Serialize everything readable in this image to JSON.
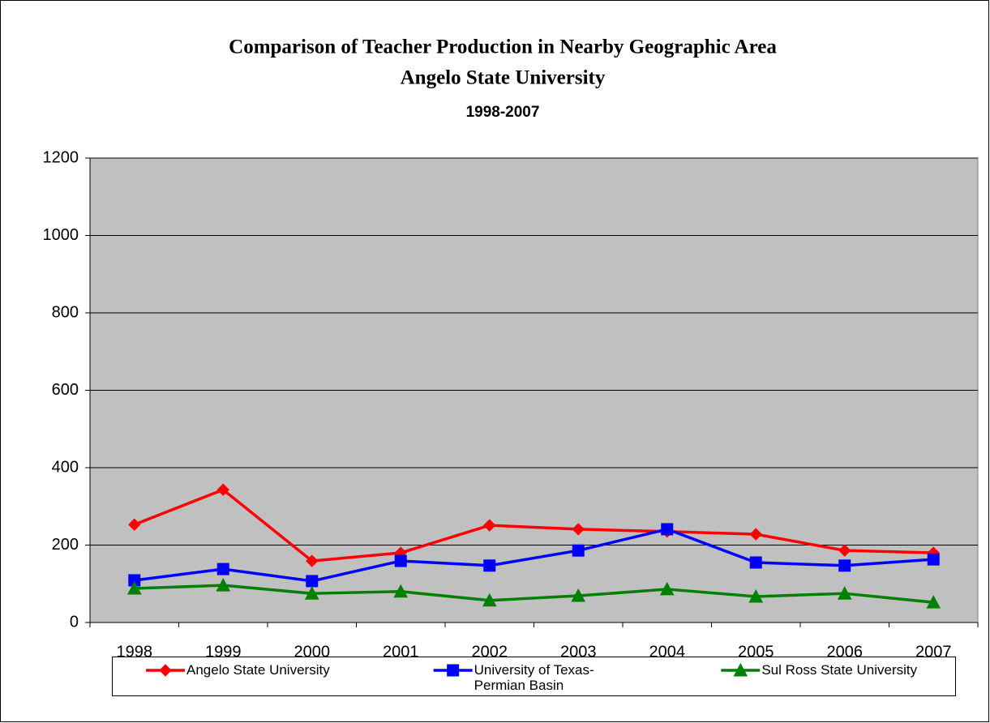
{
  "chart_data": {
    "type": "line",
    "title_lines": [
      "Comparison of Teacher Production in Nearby Geographic Area",
      "Angelo State University"
    ],
    "subtitle": "1998-2007",
    "categories": [
      "1998",
      "1999",
      "2000",
      "2001",
      "2002",
      "2003",
      "2004",
      "2005",
      "2006",
      "2007"
    ],
    "series": [
      {
        "name": "Angelo State University",
        "color": "#ff0000",
        "marker": "diamond",
        "values": [
          253,
          343,
          159,
          180,
          251,
          241,
          235,
          228,
          186,
          180
        ]
      },
      {
        "name": "University of Texas-Permian Basin",
        "color": "#0000ff",
        "marker": "square",
        "values": [
          109,
          138,
          107,
          159,
          147,
          186,
          241,
          155,
          147,
          163
        ]
      },
      {
        "name": "Sul Ross State University",
        "color": "#008000",
        "marker": "triangle",
        "values": [
          88,
          96,
          75,
          80,
          57,
          69,
          86,
          67,
          75,
          52
        ]
      }
    ],
    "ylim": [
      0,
      1200
    ],
    "yticks": [
      0,
      200,
      400,
      600,
      800,
      1000,
      1200
    ],
    "grid": true,
    "plot_background": "#c0c0c0",
    "legend": "bottom"
  }
}
